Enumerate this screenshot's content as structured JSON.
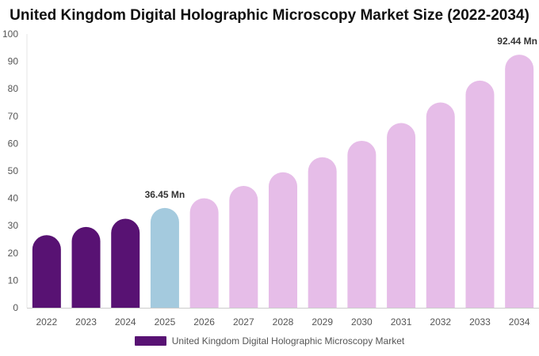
{
  "chart_data": {
    "type": "bar",
    "title": "United Kingdom Digital Holographic Microscopy Market Size (2022-2034)",
    "categories": [
      "2022",
      "2023",
      "2024",
      "2025",
      "2026",
      "2027",
      "2028",
      "2029",
      "2030",
      "2031",
      "2032",
      "2033",
      "2034"
    ],
    "series": [
      {
        "name": "United Kingdom Digital Holographic Microscopy Market",
        "values": [
          26.5,
          29.5,
          32.5,
          36.45,
          40,
          44.5,
          49.5,
          55,
          61,
          67.5,
          75,
          83,
          92.44
        ]
      }
    ],
    "bar_colors": [
      "#581273",
      "#581273",
      "#581273",
      "#a4cade",
      "#e6bde8",
      "#e6bde8",
      "#e6bde8",
      "#e6bde8",
      "#e6bde8",
      "#e6bde8",
      "#e6bde8",
      "#e6bde8",
      "#e6bde8"
    ],
    "data_labels": [
      {
        "index": 3,
        "text": "36.45 Mn"
      },
      {
        "index": 12,
        "text": "92.44 Mn"
      }
    ],
    "xlabel": "",
    "ylabel": "",
    "ylim": [
      0,
      100
    ],
    "yticks": [
      0,
      10,
      20,
      30,
      40,
      50,
      60,
      70,
      80,
      90,
      100
    ],
    "grid": false,
    "legend": {
      "position": "bottom",
      "label": "United Kingdom Digital Holographic Microscopy Market",
      "color": "#581273"
    }
  }
}
